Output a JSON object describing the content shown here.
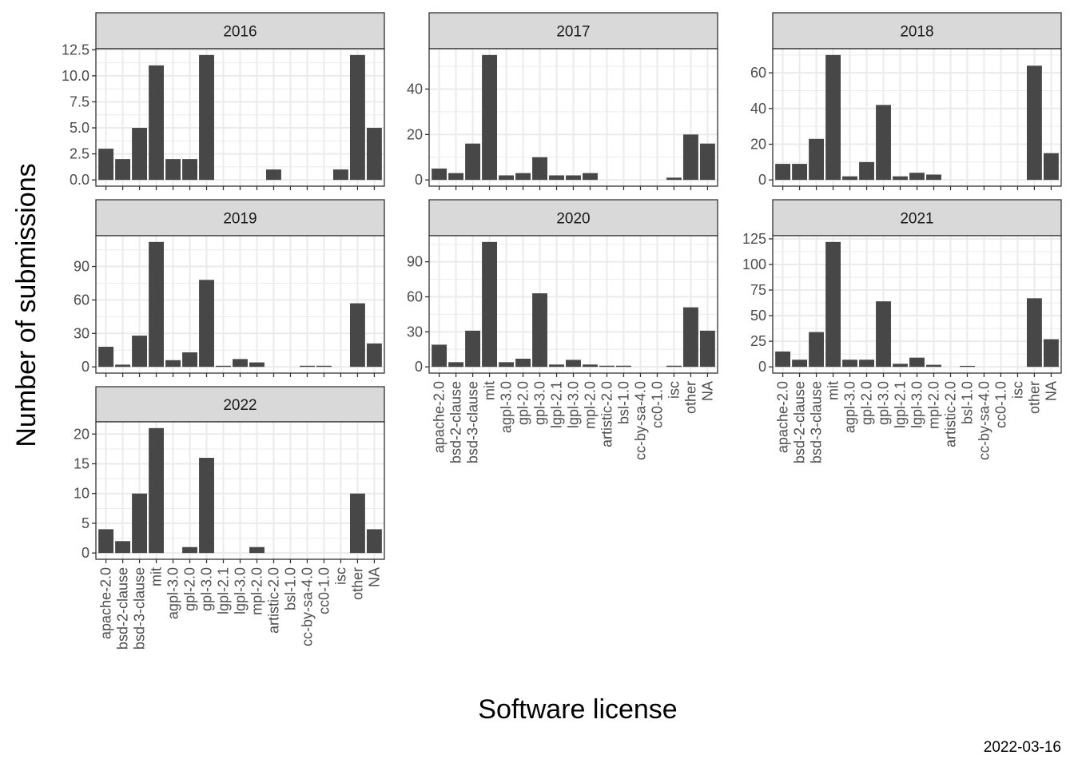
{
  "chart_data": {
    "type": "bar",
    "xlabel": "Software license",
    "ylabel": "Number of submissions",
    "caption": "2022-03-16",
    "categories": [
      "apache-2.0",
      "bsd-2-clause",
      "bsd-3-clause",
      "mit",
      "agpl-3.0",
      "gpl-2.0",
      "gpl-3.0",
      "lgpl-2.1",
      "lgpl-3.0",
      "mpl-2.0",
      "artistic-2.0",
      "bsl-1.0",
      "cc-by-sa-4.0",
      "cc0-1.0",
      "isc",
      "other",
      "NA"
    ],
    "grid": true,
    "colors": {
      "bar": "#474747",
      "grid": "#ebebeb",
      "strip": "#d9d9d9",
      "border": "#333333"
    },
    "panels": [
      {
        "label": "2016",
        "values": [
          3,
          2,
          5,
          11,
          2,
          2,
          12,
          0,
          0,
          0,
          1,
          0,
          0,
          0,
          1,
          12,
          5
        ],
        "ylim": [
          -0.6,
          12.6
        ],
        "ticks": [
          "0.0",
          "2.5",
          "5.0",
          "7.5",
          "10.0",
          "12.5"
        ]
      },
      {
        "label": "2017",
        "values": [
          5,
          3,
          16,
          55,
          2,
          3,
          10,
          2,
          2,
          3,
          0,
          0,
          0,
          0,
          1,
          20,
          16
        ],
        "ylim": [
          -2.75,
          57.75
        ],
        "ticks": [
          "0",
          "20",
          "40"
        ]
      },
      {
        "label": "2018",
        "values": [
          9,
          9,
          23,
          70,
          2,
          10,
          42,
          2,
          4,
          3,
          0,
          0,
          0,
          0,
          0,
          64,
          15
        ],
        "ylim": [
          -3.5,
          73.5
        ],
        "ticks": [
          "0",
          "20",
          "40",
          "60"
        ]
      },
      {
        "label": "2019",
        "values": [
          18,
          2,
          28,
          112,
          6,
          13,
          78,
          1,
          7,
          4,
          0,
          0,
          1,
          1,
          0,
          57,
          21
        ],
        "ylim": [
          -5.6,
          117.6
        ],
        "ticks": [
          "0",
          "30",
          "60",
          "90"
        ]
      },
      {
        "label": "2020",
        "values": [
          19,
          4,
          31,
          107,
          4,
          7,
          63,
          2,
          6,
          2,
          1,
          1,
          0,
          0,
          1,
          51,
          31
        ],
        "ylim": [
          -5.35,
          112.35
        ],
        "ticks": [
          "0",
          "30",
          "60",
          "90"
        ]
      },
      {
        "label": "2021",
        "values": [
          15,
          7,
          34,
          122,
          7,
          7,
          64,
          3,
          9,
          2,
          0,
          1,
          0,
          0,
          0,
          67,
          27
        ],
        "ylim": [
          -6.1,
          128.1
        ],
        "ticks": [
          "0",
          "25",
          "50",
          "75",
          "100",
          "125"
        ]
      },
      {
        "label": "2022",
        "values": [
          4,
          2,
          10,
          21,
          0,
          1,
          16,
          0,
          0,
          1,
          0,
          0,
          0,
          0,
          0,
          10,
          4
        ],
        "ylim": [
          -1.05,
          22.05
        ],
        "ticks": [
          "0",
          "5",
          "10",
          "15",
          "20"
        ]
      }
    ]
  }
}
